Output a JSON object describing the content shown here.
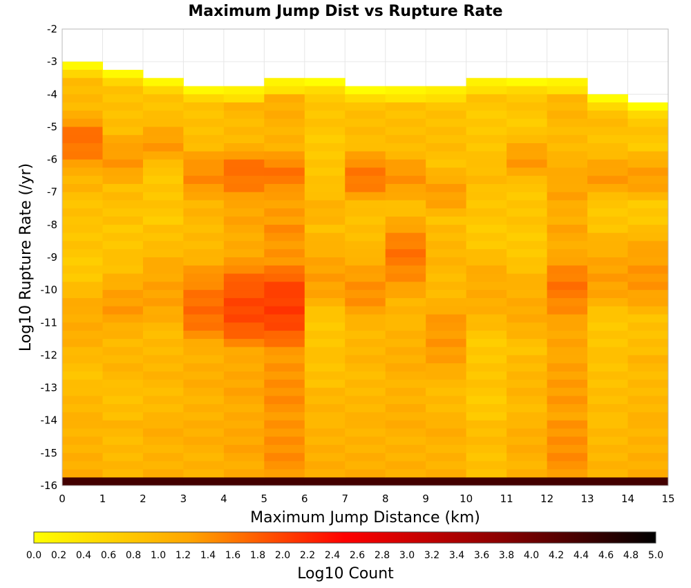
{
  "chart_data": {
    "type": "heatmap",
    "title": "Maximum Jump Dist vs Rupture Rate",
    "xlabel": "Maximum Jump Distance (km)",
    "ylabel": "Log10 Rupture Rate (/yr)",
    "xlim": [
      0,
      15
    ],
    "ylim": [
      -16,
      -2
    ],
    "x_ticks": [
      "0",
      "1",
      "2",
      "3",
      "4",
      "5",
      "6",
      "7",
      "8",
      "9",
      "10",
      "11",
      "12",
      "13",
      "14",
      "15"
    ],
    "y_ticks": [
      "-2",
      "-3",
      "-4",
      "-5",
      "-6",
      "-7",
      "-8",
      "-9",
      "-10",
      "-11",
      "-12",
      "-13",
      "-14",
      "-15",
      "-16"
    ],
    "grid": true,
    "x_bin_width": 1,
    "y_bin_height": 0.25,
    "colorbar": {
      "label": "Log10 Count",
      "range": [
        0,
        5
      ],
      "ticks": [
        "0.0",
        "0.2",
        "0.4",
        "0.6",
        "0.8",
        "1.0",
        "1.2",
        "1.4",
        "1.6",
        "1.8",
        "2.0",
        "2.2",
        "2.4",
        "2.6",
        "2.8",
        "3.0",
        "3.2",
        "3.4",
        "3.6",
        "3.8",
        "4.0",
        "4.2",
        "4.4",
        "4.6",
        "4.8",
        "5.0"
      ],
      "colors": [
        "#ffff00",
        "#ffa500",
        "#ff0000",
        "#8b0000",
        "#000000"
      ]
    },
    "columns": [
      {
        "x": 0,
        "top": -3.0,
        "tail": [
          1.2,
          1.2,
          1.1,
          1.0,
          1.0,
          1.1,
          1.2,
          1.1,
          1.2,
          1.3
        ],
        "upper_peak": [
          -5.5,
          1.9
        ],
        "lower_peak": [
          -11,
          1.4
        ]
      },
      {
        "x": 1,
        "top": -3.25,
        "tail": [
          1.1,
          1.0,
          1.1,
          1.0,
          1.1,
          1.2,
          1.2,
          1.2,
          1.1,
          1.2
        ],
        "upper_peak": [
          -6.0,
          1.6
        ],
        "lower_peak": [
          -10.5,
          1.5
        ]
      },
      {
        "x": 2,
        "top": -3.5,
        "tail": [
          1.1,
          1.0,
          0.9,
          1.1,
          1.0,
          1.1,
          1.2,
          1.2,
          1.2,
          1.3
        ],
        "upper_peak": [
          -5.5,
          1.5
        ],
        "lower_peak": [
          -10,
          1.5
        ]
      },
      {
        "x": 3,
        "top": -3.75,
        "tail": [
          1.1,
          1.2,
          1.2,
          1.2,
          1.2,
          1.3,
          1.3,
          1.3,
          1.3,
          1.3
        ],
        "upper_peak": [
          -6.5,
          1.7
        ],
        "lower_peak": [
          -10.5,
          1.9
        ]
      },
      {
        "x": 4,
        "top": -3.75,
        "tail": [
          1.2,
          1.3,
          1.4,
          1.4,
          1.4,
          1.4,
          1.4,
          1.4,
          1.4,
          1.4
        ],
        "upper_peak": [
          -6.5,
          1.9
        ],
        "lower_peak": [
          -10.5,
          2.2
        ]
      },
      {
        "x": 5,
        "top": -3.5,
        "tail": [
          1.3,
          1.4,
          1.5,
          1.6,
          1.6,
          1.6,
          1.5,
          1.6,
          1.6,
          1.6
        ],
        "upper_peak": [
          -6.5,
          1.8
        ],
        "lower_peak": [
          -10.5,
          2.3
        ]
      },
      {
        "x": 6,
        "top": -3.5,
        "tail": [
          1.0,
          1.0,
          1.0,
          1.0,
          1.0,
          1.0,
          1.0,
          1.1,
          1.2,
          1.3
        ],
        "upper_peak": [
          -7.5,
          1.3
        ],
        "lower_peak": [
          -9.5,
          1.5
        ]
      },
      {
        "x": 7,
        "top": -3.75,
        "tail": [
          1.1,
          1.1,
          1.1,
          1.1,
          1.1,
          1.2,
          1.2,
          1.2,
          1.2,
          1.3
        ],
        "upper_peak": [
          -6.5,
          1.8
        ],
        "lower_peak": [
          -10,
          1.6
        ]
      },
      {
        "x": 8,
        "top": -3.75,
        "tail": [
          1.1,
          1.1,
          1.1,
          1.1,
          1.2,
          1.2,
          1.3,
          1.3,
          1.3,
          1.3
        ],
        "upper_peak": [
          -6.5,
          1.6
        ],
        "lower_peak": [
          -9,
          1.8
        ]
      },
      {
        "x": 9,
        "top": -3.75,
        "tail": [
          1.1,
          1.1,
          1.1,
          1.2,
          1.2,
          1.2,
          1.2,
          1.2,
          1.2,
          1.3
        ],
        "upper_peak": [
          -7.0,
          1.5
        ],
        "lower_peak": [
          -11.5,
          1.6
        ]
      },
      {
        "x": 10,
        "top": -3.5,
        "tail": [
          0.4,
          0.8,
          0.8,
          0.9,
          0.9,
          1.0,
          1.0,
          1.0,
          1.0,
          1.1
        ],
        "upper_peak": [
          -6.5,
          1.2
        ],
        "lower_peak": [
          -10,
          1.4
        ]
      },
      {
        "x": 11,
        "top": -3.5,
        "tail": [
          1.0,
          1.0,
          0.9,
          0.8,
          1.0,
          1.0,
          1.1,
          1.2,
          1.2,
          1.3
        ],
        "upper_peak": [
          -6.0,
          1.5
        ],
        "lower_peak": [
          -10.5,
          1.4
        ]
      },
      {
        "x": 12,
        "top": -3.5,
        "tail": [
          1.2,
          1.3,
          1.3,
          1.4,
          1.4,
          1.4,
          1.4,
          1.5,
          1.5,
          1.6
        ],
        "upper_peak": [
          -7.0,
          1.5
        ],
        "lower_peak": [
          -10,
          1.8
        ]
      },
      {
        "x": 13,
        "top": -4.0,
        "tail": [
          1.1,
          1.0,
          0.9,
          0.9,
          1.0,
          1.0,
          1.0,
          1.1,
          1.1,
          1.2
        ],
        "upper_peak": [
          -6.5,
          1.5
        ],
        "lower_peak": [
          -9.5,
          1.5
        ]
      },
      {
        "x": 14,
        "top": -4.25,
        "tail": [
          0.8,
          0.9,
          1.0,
          1.0,
          0.9,
          1.1,
          1.1,
          1.2,
          1.2,
          1.3
        ],
        "upper_peak": [
          -6.5,
          1.5
        ],
        "lower_peak": [
          -9.5,
          1.6
        ]
      }
    ]
  }
}
